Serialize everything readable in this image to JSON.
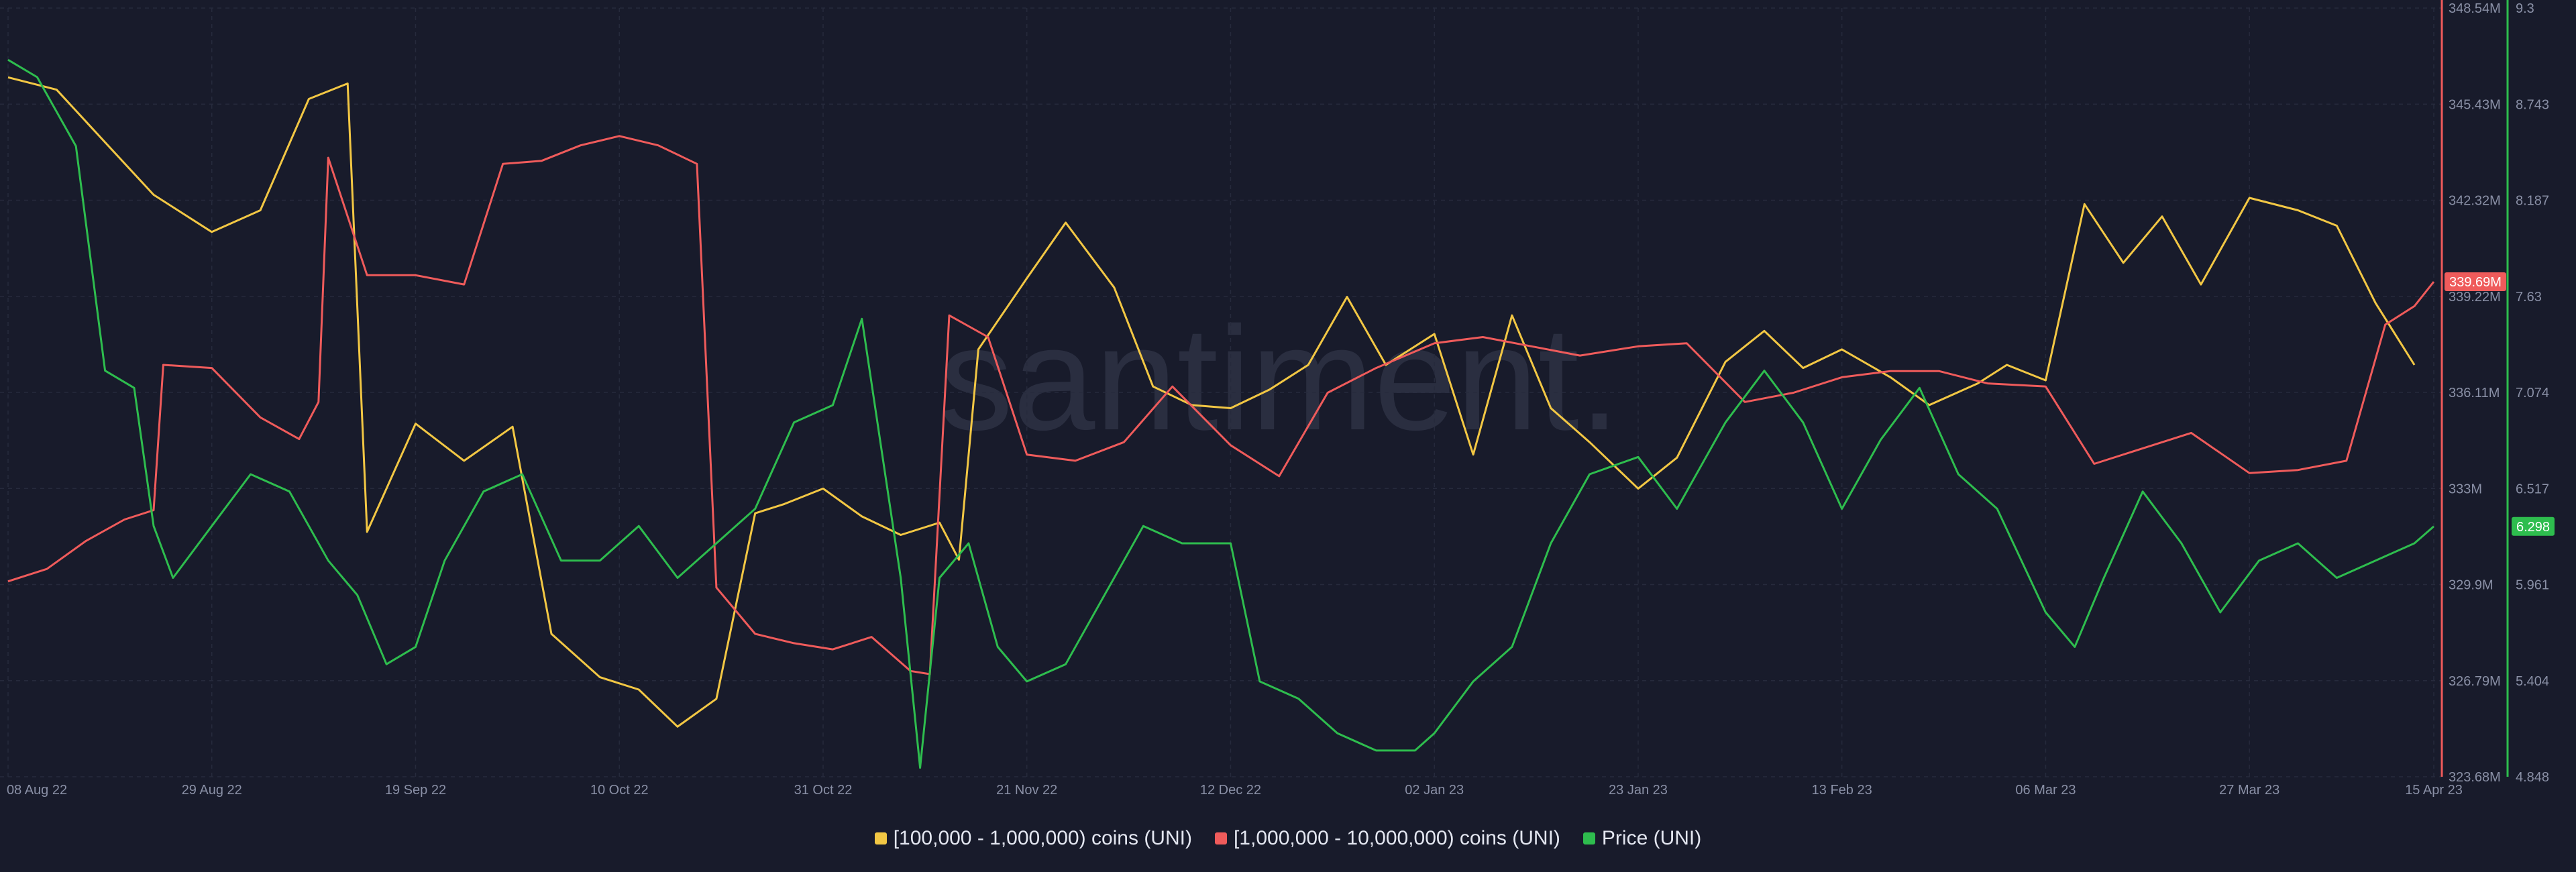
{
  "colors": {
    "background": "#181b2b",
    "grid": "#262a3c",
    "tick_text": "#8a90a6",
    "series_small": "#f2c744",
    "series_large": "#ef5b5b",
    "series_price": "#2ebd4e"
  },
  "watermark": "santiment.",
  "legend": [
    {
      "label": "[100,000  - 1,000,000) coins (UNI)",
      "color": "#f2c744"
    },
    {
      "label": "[1,000,000 - 10,000,000) coins (UNI)",
      "color": "#ef5b5b"
    },
    {
      "label": "Price (UNI)",
      "color": "#2ebd4e"
    }
  ],
  "chart_data": {
    "type": "line",
    "grid": true,
    "legend_position": "bottom",
    "x_ticks": [
      "08 Aug 22",
      "29 Aug 22",
      "19 Sep 22",
      "10 Oct 22",
      "31 Oct 22",
      "21 Nov 22",
      "12 Dec 22",
      "02 Jan 23",
      "23 Jan 23",
      "13 Feb 23",
      "06 Mar 23",
      "27 Mar 23",
      "15 Apr 23"
    ],
    "x_range": [
      "2022-08-08",
      "2023-04-15"
    ],
    "left_axis": {
      "ticks": [
        "348.54M",
        "345.43M",
        "342.32M",
        "339.22M",
        "336.11M",
        "333M",
        "329.9M",
        "326.79M",
        "323.68M"
      ],
      "range": [
        323.68,
        348.54
      ],
      "unit": "M"
    },
    "right_axis": {
      "ticks": [
        "9.3",
        "8.743",
        "8.187",
        "7.63",
        "7.074",
        "6.517",
        "5.961",
        "5.404",
        "4.848"
      ],
      "range": [
        4.848,
        9.3
      ]
    },
    "last_value_labels": {
      "large_holders": "339.69M",
      "price": "6.298"
    },
    "series": [
      {
        "name": "[100,000  - 1,000,000) coins (UNI)",
        "axis": "left",
        "color": "#f2c744",
        "x": [
          "2022-08-08",
          "2022-08-13",
          "2022-08-18",
          "2022-08-23",
          "2022-08-29",
          "2022-09-03",
          "2022-09-08",
          "2022-09-12",
          "2022-09-14",
          "2022-09-19",
          "2022-09-24",
          "2022-09-29",
          "2022-10-03",
          "2022-10-08",
          "2022-10-12",
          "2022-10-16",
          "2022-10-20",
          "2022-10-24",
          "2022-10-27",
          "2022-10-31",
          "2022-11-04",
          "2022-11-08",
          "2022-11-12",
          "2022-11-14",
          "2022-11-16",
          "2022-11-21",
          "2022-11-25",
          "2022-11-30",
          "2022-12-04",
          "2022-12-08",
          "2022-12-12",
          "2022-12-16",
          "2022-12-20",
          "2022-12-24",
          "2022-12-28",
          "2023-01-02",
          "2023-01-06",
          "2023-01-10",
          "2023-01-14",
          "2023-01-18",
          "2023-01-23",
          "2023-01-27",
          "2023-02-01",
          "2023-02-05",
          "2023-02-09",
          "2023-02-13",
          "2023-02-18",
          "2023-02-22",
          "2023-02-27",
          "2023-03-02",
          "2023-03-06",
          "2023-03-10",
          "2023-03-14",
          "2023-03-18",
          "2023-03-22",
          "2023-03-27",
          "2023-04-01",
          "2023-04-05",
          "2023-04-09",
          "2023-04-13"
        ],
        "values": [
          346.3,
          345.9,
          344.2,
          342.5,
          341.3,
          342.0,
          345.6,
          346.1,
          331.6,
          335.1,
          333.9,
          335.0,
          328.3,
          326.9,
          326.5,
          325.3,
          326.2,
          332.2,
          332.5,
          333.0,
          332.1,
          331.5,
          331.9,
          330.7,
          337.5,
          339.8,
          341.6,
          339.5,
          336.3,
          335.7,
          335.6,
          336.2,
          337.0,
          339.2,
          337.0,
          338.0,
          334.1,
          338.6,
          335.6,
          334.5,
          333.0,
          334.0,
          337.1,
          338.1,
          336.9,
          337.5,
          336.6,
          335.7,
          336.4,
          337.0,
          336.5,
          342.2,
          340.3,
          341.8,
          339.6,
          342.4,
          342.0,
          341.5,
          339.0,
          337.0
        ]
      },
      {
        "name": "[1,000,000 - 10,000,000) coins (UNI)",
        "axis": "left",
        "color": "#ef5b5b",
        "x": [
          "2022-08-08",
          "2022-08-12",
          "2022-08-16",
          "2022-08-20",
          "2022-08-23",
          "2022-08-24",
          "2022-08-29",
          "2022-09-03",
          "2022-09-07",
          "2022-09-09",
          "2022-09-10",
          "2022-09-14",
          "2022-09-19",
          "2022-09-24",
          "2022-09-28",
          "2022-10-02",
          "2022-10-06",
          "2022-10-10",
          "2022-10-14",
          "2022-10-18",
          "2022-10-20",
          "2022-10-24",
          "2022-10-28",
          "2022-11-01",
          "2022-11-05",
          "2022-11-09",
          "2022-11-11",
          "2022-11-13",
          "2022-11-17",
          "2022-11-21",
          "2022-11-26",
          "2022-12-01",
          "2022-12-06",
          "2022-12-12",
          "2022-12-17",
          "2022-12-22",
          "2022-12-27",
          "2023-01-02",
          "2023-01-07",
          "2023-01-12",
          "2023-01-17",
          "2023-01-23",
          "2023-01-28",
          "2023-02-03",
          "2023-02-08",
          "2023-02-13",
          "2023-02-18",
          "2023-02-23",
          "2023-02-28",
          "2023-03-06",
          "2023-03-11",
          "2023-03-16",
          "2023-03-21",
          "2023-03-27",
          "2023-04-01",
          "2023-04-06",
          "2023-04-10",
          "2023-04-13",
          "2023-04-15"
        ],
        "values": [
          330.0,
          330.4,
          331.3,
          332.0,
          332.3,
          337.0,
          336.9,
          335.3,
          334.6,
          335.8,
          343.7,
          339.9,
          339.9,
          339.6,
          343.5,
          343.6,
          344.1,
          344.4,
          344.1,
          343.5,
          329.8,
          328.3,
          328.0,
          327.8,
          328.2,
          327.1,
          327.0,
          338.6,
          337.9,
          334.1,
          333.9,
          334.5,
          336.3,
          334.4,
          333.4,
          336.1,
          336.9,
          337.7,
          337.9,
          337.6,
          337.3,
          337.6,
          337.7,
          335.8,
          336.1,
          336.6,
          336.8,
          336.8,
          336.4,
          336.3,
          333.8,
          334.3,
          334.8,
          333.5,
          333.6,
          333.9,
          338.3,
          338.9,
          339.69
        ]
      },
      {
        "name": "Price (UNI)",
        "axis": "right",
        "color": "#2ebd4e",
        "x": [
          "2022-08-08",
          "2022-08-11",
          "2022-08-15",
          "2022-08-18",
          "2022-08-21",
          "2022-08-23",
          "2022-08-25",
          "2022-08-29",
          "2022-09-02",
          "2022-09-06",
          "2022-09-10",
          "2022-09-13",
          "2022-09-16",
          "2022-09-19",
          "2022-09-22",
          "2022-09-26",
          "2022-09-30",
          "2022-10-04",
          "2022-10-08",
          "2022-10-12",
          "2022-10-16",
          "2022-10-20",
          "2022-10-24",
          "2022-10-28",
          "2022-11-01",
          "2022-11-04",
          "2022-11-08",
          "2022-11-10",
          "2022-11-12",
          "2022-11-15",
          "2022-11-18",
          "2022-11-21",
          "2022-11-25",
          "2022-11-29",
          "2022-12-03",
          "2022-12-07",
          "2022-12-12",
          "2022-12-15",
          "2022-12-19",
          "2022-12-23",
          "2022-12-27",
          "2022-12-31",
          "2023-01-02",
          "2023-01-06",
          "2023-01-10",
          "2023-01-14",
          "2023-01-18",
          "2023-01-23",
          "2023-01-27",
          "2023-02-01",
          "2023-02-05",
          "2023-02-09",
          "2023-02-13",
          "2023-02-17",
          "2023-02-21",
          "2023-02-25",
          "2023-03-01",
          "2023-03-06",
          "2023-03-09",
          "2023-03-12",
          "2023-03-16",
          "2023-03-20",
          "2023-03-24",
          "2023-03-28",
          "2023-04-01",
          "2023-04-05",
          "2023-04-09",
          "2023-04-13",
          "2023-04-15"
        ],
        "values": [
          9.0,
          8.9,
          8.5,
          7.2,
          7.1,
          6.3,
          6.0,
          6.3,
          6.6,
          6.5,
          6.1,
          5.9,
          5.5,
          5.6,
          6.1,
          6.5,
          6.6,
          6.1,
          6.1,
          6.3,
          6.0,
          6.2,
          6.4,
          6.9,
          7.0,
          7.5,
          6.0,
          4.9,
          6.0,
          6.2,
          5.6,
          5.4,
          5.5,
          5.9,
          6.3,
          6.2,
          6.2,
          5.4,
          5.3,
          5.1,
          5.0,
          5.0,
          5.1,
          5.4,
          5.6,
          6.2,
          6.6,
          6.7,
          6.4,
          6.9,
          7.2,
          6.9,
          6.4,
          6.8,
          7.1,
          6.6,
          6.4,
          5.8,
          5.6,
          6.0,
          6.5,
          6.2,
          5.8,
          6.1,
          6.2,
          6.0,
          6.1,
          6.2,
          6.298
        ]
      }
    ]
  }
}
